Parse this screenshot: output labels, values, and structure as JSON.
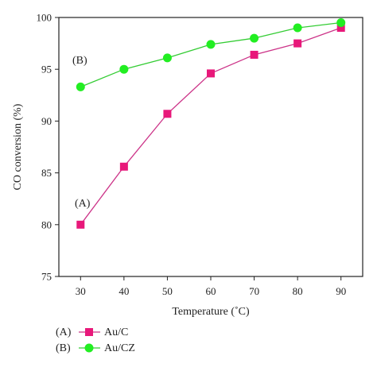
{
  "chart_data": {
    "type": "line",
    "xlabel": "Temperature (˚C)",
    "ylabel": "CO conversion (%)",
    "xlim": [
      25,
      95
    ],
    "ylim": [
      75,
      100
    ],
    "x_ticks": [
      30,
      40,
      50,
      60,
      70,
      80,
      90
    ],
    "y_ticks": [
      75,
      80,
      85,
      90,
      95,
      100
    ],
    "grid": false,
    "legend_position": "bottom-left, below plot",
    "series": [
      {
        "name": "Au/C",
        "legend_tag": "(A)",
        "annotation": "(A)",
        "marker": "square",
        "line_color": "#cc3388",
        "marker_color": "#e8187a",
        "x": [
          30,
          40,
          50,
          60,
          70,
          80,
          90
        ],
        "y": [
          80.0,
          85.6,
          90.7,
          94.6,
          96.4,
          97.5,
          99.0
        ]
      },
      {
        "name": "Au/CZ",
        "legend_tag": "(B)",
        "annotation": "(B)",
        "marker": "circle",
        "line_color": "#33cc33",
        "marker_color": "#22ee22",
        "x": [
          30,
          40,
          50,
          60,
          70,
          80,
          90
        ],
        "y": [
          93.3,
          95.0,
          96.1,
          97.4,
          98.0,
          99.0,
          99.5
        ]
      }
    ]
  }
}
